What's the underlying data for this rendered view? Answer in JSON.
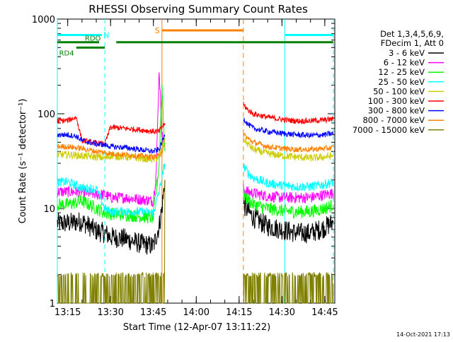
{
  "chart_data": {
    "type": "line",
    "title": "RHESSI Observing Summary Count Rates",
    "xlabel": "Start Time (12-Apr-07 13:11:22)",
    "ylabel": "Count Rate (s⁻¹ detector⁻¹)",
    "yscale": "log",
    "ylim": [
      1,
      1000
    ],
    "xlim": [
      "13:11:22",
      "14:48:30"
    ],
    "x_ticks": [
      "13:15",
      "13:30",
      "13:45",
      "14:00",
      "14:15",
      "14:30",
      "14:45"
    ],
    "y_ticks": [
      "1",
      "10",
      "100",
      "1000"
    ],
    "timestamp": "14-Oct-2021 17:13",
    "legend": {
      "position": "right",
      "header": [
        "Det 1,3,4,5,6,9,",
        "FDecim 1, Att 0"
      ],
      "entries": [
        {
          "label": "3 - 6 keV",
          "color": "#000000"
        },
        {
          "label": "6 - 12 keV",
          "color": "#ff00ff"
        },
        {
          "label": "12 - 25 keV",
          "color": "#00ff00"
        },
        {
          "label": "25 - 50 keV",
          "color": "#00ffff"
        },
        {
          "label": "50 - 100 keV",
          "color": "#cccc00"
        },
        {
          "label": "100 - 300 keV",
          "color": "#ff0000"
        },
        {
          "label": "300 - 800 keV",
          "color": "#0000ff"
        },
        {
          "label": "800 - 7000 keV",
          "color": "#ff8000"
        },
        {
          "label": "7000 - 15000 keV",
          "color": "#808000"
        }
      ]
    },
    "annotations": [
      {
        "label": "N",
        "color": "#00ffff",
        "intervals": [
          [
            "13:11:22",
            "13:27:00"
          ],
          [
            "14:31:00",
            "14:48:00"
          ]
        ],
        "level": 680
      },
      {
        "label": "RDO",
        "color": "#008000",
        "intervals": [
          [
            "13:11:22",
            "13:26:00"
          ],
          [
            "13:32:00",
            "14:48:00"
          ]
        ],
        "level": 570
      },
      {
        "label": "RD4",
        "color": "#008000",
        "intervals": [
          [
            "13:18:00",
            "13:28:00"
          ]
        ],
        "level": 500
      },
      {
        "label": "S",
        "color": "#ff8000",
        "intervals": [
          [
            "13:48:00",
            "14:16:30"
          ]
        ],
        "level": 760
      }
    ],
    "night_lines": {
      "color": "#00ffff",
      "times": [
        "13:11:22",
        "13:28:00",
        "14:31:00",
        "14:48:00"
      ]
    },
    "saa_lines": {
      "color": "#ff8000",
      "times": [
        "13:48:00",
        "14:16:30"
      ]
    },
    "gap": [
      "13:49:00",
      "14:16:30"
    ],
    "series": [
      {
        "name": "3 - 6 keV",
        "color": "#000000",
        "segments": [
          {
            "x": [
              "13:11:22",
              "13:15:00",
              "13:20:00",
              "13:25:00",
              "13:28:00",
              "13:30:00",
              "13:35:00",
              "13:40:00",
              "13:45:00",
              "13:47:00",
              "13:48:00",
              "13:49:00"
            ],
            "y": [
              7,
              7,
              7.3,
              5.8,
              5.5,
              5,
              4.8,
              4.3,
              4.0,
              6.5,
              10,
              20
            ]
          },
          {
            "x": [
              "14:16:30",
              "14:18:00",
              "14:20:00",
              "14:25:00",
              "14:30:00",
              "14:35:00",
              "14:40:00",
              "14:45:00",
              "14:48:00"
            ],
            "y": [
              11,
              9.5,
              8,
              6.5,
              6.0,
              5.5,
              5.5,
              6.3,
              7.2
            ]
          }
        ]
      },
      {
        "name": "6 - 12 keV",
        "color": "#ff00ff",
        "segments": [
          {
            "x": [
              "13:11:22",
              "13:15:00",
              "13:20:00",
              "13:25:00",
              "13:28:00",
              "13:30:00",
              "13:35:00",
              "13:40:00",
              "13:45:00",
              "13:46:00",
              "13:47:00",
              "13:48:00",
              "13:49:00"
            ],
            "y": [
              15,
              15,
              15,
              14,
              14,
              13,
              13,
              12.5,
              12,
              25,
              300,
              60,
              45
            ]
          },
          {
            "x": [
              "14:16:30",
              "14:18:00",
              "14:20:00",
              "14:25:00",
              "14:30:00",
              "14:35:00",
              "14:40:00",
              "14:45:00",
              "14:48:00"
            ],
            "y": [
              16,
              15,
              14.5,
              13.5,
              13,
              13,
              13,
              14,
              14.5
            ]
          }
        ]
      },
      {
        "name": "12 - 25 keV",
        "color": "#00ff00",
        "segments": [
          {
            "x": [
              "13:11:22",
              "13:15:00",
              "13:20:00",
              "13:25:00",
              "13:28:00",
              "13:30:00",
              "13:35:00",
              "13:40:00",
              "13:45:00",
              "13:47:00",
              "13:48:00",
              "13:49:00"
            ],
            "y": [
              11,
              11,
              12,
              10,
              9,
              8.8,
              8.6,
              8.3,
              8.0,
              30,
              200,
              40
            ]
          },
          {
            "x": [
              "14:16:30",
              "14:18:00",
              "14:20:00",
              "14:25:00",
              "14:30:00",
              "14:35:00",
              "14:40:00",
              "14:45:00",
              "14:48:00"
            ],
            "y": [
              14,
              12.5,
              11,
              10,
              9.5,
              9.2,
              9.3,
              10,
              11
            ]
          }
        ]
      },
      {
        "name": "25 - 50 keV",
        "color": "#00ffff",
        "segments": [
          {
            "x": [
              "13:11:22",
              "13:15:00",
              "13:20:00",
              "13:25:00",
              "13:28:00",
              "13:30:00",
              "13:35:00",
              "13:40:00",
              "13:45:00",
              "13:47:00",
              "13:49:00"
            ],
            "y": [
              19,
              19,
              16.5,
              16,
              10,
              9.2,
              9.3,
              9.2,
              9.0,
              15,
              30
            ]
          },
          {
            "x": [
              "14:16:30",
              "14:18:00",
              "14:20:00",
              "14:25:00",
              "14:30:00",
              "14:35:00",
              "14:40:00",
              "14:45:00",
              "14:48:00"
            ],
            "y": [
              28,
              24,
              21,
              18.5,
              17.5,
              17,
              17,
              18,
              19
            ]
          }
        ]
      },
      {
        "name": "50 - 100 keV",
        "color": "#cccc00",
        "segments": [
          {
            "x": [
              "13:11:22",
              "13:15:00",
              "13:20:00",
              "13:25:00",
              "13:28:00",
              "13:30:00",
              "13:35:00",
              "13:40:00",
              "13:45:00",
              "13:47:00",
              "13:49:00"
            ],
            "y": [
              37,
              37,
              36,
              35,
              34,
              36,
              35,
              34,
              33,
              35,
              55
            ]
          },
          {
            "x": [
              "14:16:30",
              "14:18:00",
              "14:20:00",
              "14:25:00",
              "14:30:00",
              "14:35:00",
              "14:40:00",
              "14:45:00",
              "14:48:00"
            ],
            "y": [
              55,
              48,
              42,
              38,
              36,
              35,
              34,
              35,
              36
            ]
          }
        ]
      },
      {
        "name": "100 - 300 keV",
        "color": "#ff0000",
        "segments": [
          {
            "x": [
              "13:11:22",
              "13:15:00",
              "13:18:00",
              "13:20:00",
              "13:25:00",
              "13:28:00",
              "13:30:00",
              "13:35:00",
              "13:40:00",
              "13:45:00",
              "13:47:00",
              "13:49:00"
            ],
            "y": [
              84,
              85,
              92,
              52,
              49,
              48,
              72,
              70,
              68,
              65,
              65,
              80
            ]
          },
          {
            "x": [
              "14:16:30",
              "14:18:00",
              "14:20:00",
              "14:25:00",
              "14:30:00",
              "14:35:00",
              "14:40:00",
              "14:45:00",
              "14:48:00"
            ],
            "y": [
              125,
              110,
              100,
              92,
              87,
              84,
              84,
              86,
              88
            ]
          }
        ]
      },
      {
        "name": "300 - 800 keV",
        "color": "#0000ff",
        "segments": [
          {
            "x": [
              "13:11:22",
              "13:15:00",
              "13:18:00",
              "13:20:00",
              "13:25:00",
              "13:28:00",
              "13:30:00",
              "13:35:00",
              "13:40:00",
              "13:45:00",
              "13:47:00",
              "13:49:00"
            ],
            "y": [
              60,
              60,
              58,
              52,
              48,
              47,
              45,
              44,
              42,
              40,
              42,
              60
            ]
          },
          {
            "x": [
              "14:16:30",
              "14:18:00",
              "14:20:00",
              "14:25:00",
              "14:30:00",
              "14:35:00",
              "14:40:00",
              "14:45:00",
              "14:48:00"
            ],
            "y": [
              90,
              78,
              70,
              65,
              62,
              60,
              59,
              60,
              62
            ]
          }
        ]
      },
      {
        "name": "800 - 7000 keV",
        "color": "#ff8000",
        "segments": [
          {
            "x": [
              "13:11:22",
              "13:15:00",
              "13:20:00",
              "13:25:00",
              "13:28:00",
              "13:30:00",
              "13:35:00",
              "13:40:00",
              "13:45:00",
              "13:47:00",
              "13:49:00"
            ],
            "y": [
              45,
              45,
              43,
              40,
              39,
              38,
              37,
              36,
              35,
              36,
              45
            ]
          },
          {
            "x": [
              "14:16:30",
              "14:18:00",
              "14:20:00",
              "14:25:00",
              "14:30:00",
              "14:35:00",
              "14:40:00",
              "14:45:00",
              "14:48:00"
            ],
            "y": [
              62,
              55,
              50,
              45,
              43,
              42,
              42,
              43,
              44
            ]
          }
        ]
      },
      {
        "name": "7000 - 15000 keV",
        "color": "#808000",
        "segments": [
          {
            "x": [
              "13:11:22",
              "13:15:00",
              "13:20:00",
              "13:25:00",
              "13:28:00",
              "13:30:00",
              "13:35:00",
              "13:40:00",
              "13:45:00",
              "13:47:00",
              "13:48:00",
              "13:49:00"
            ],
            "y": [
              1.8,
              1.7,
              1.6,
              1.8,
              1.5,
              1.8,
              1.6,
              1.7,
              1.5,
              2.5,
              8,
              20
            ]
          },
          {
            "x": [
              "14:16:30",
              "14:20:00",
              "14:25:00",
              "14:30:00",
              "14:35:00",
              "14:40:00",
              "14:45:00",
              "14:48:00"
            ],
            "y": [
              1.8,
              1.6,
              1.7,
              1.5,
              1.8,
              1.6,
              1.7,
              1.6
            ]
          }
        ]
      }
    ]
  }
}
